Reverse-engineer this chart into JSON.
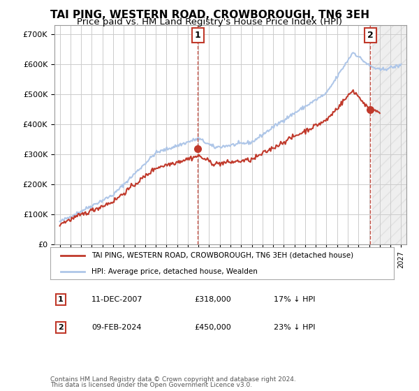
{
  "title": "TAI PING, WESTERN ROAD, CROWBOROUGH, TN6 3EH",
  "subtitle": "Price paid vs. HM Land Registry's House Price Index (HPI)",
  "legend_line1": "TAI PING, WESTERN ROAD, CROWBOROUGH, TN6 3EH (detached house)",
  "legend_line2": "HPI: Average price, detached house, Wealden",
  "annotation1_date": "11-DEC-2007",
  "annotation1_price": "£318,000",
  "annotation1_hpi": "17% ↓ HPI",
  "annotation1_year": 2007.95,
  "annotation1_value": 318000,
  "annotation2_date": "09-FEB-2024",
  "annotation2_price": "£450,000",
  "annotation2_hpi": "23% ↓ HPI",
  "annotation2_year": 2024.12,
  "annotation2_value": 450000,
  "footer1": "Contains HM Land Registry data © Crown copyright and database right 2024.",
  "footer2": "This data is licensed under the Open Government Licence v3.0.",
  "ylim": [
    0,
    730000
  ],
  "yticks": [
    0,
    100000,
    200000,
    300000,
    400000,
    500000,
    600000,
    700000
  ],
  "hpi_color": "#aec6e8",
  "price_color": "#c0392b",
  "bg_color": "#ffffff",
  "grid_color": "#cccccc",
  "title_fontsize": 11,
  "subtitle_fontsize": 9.5
}
